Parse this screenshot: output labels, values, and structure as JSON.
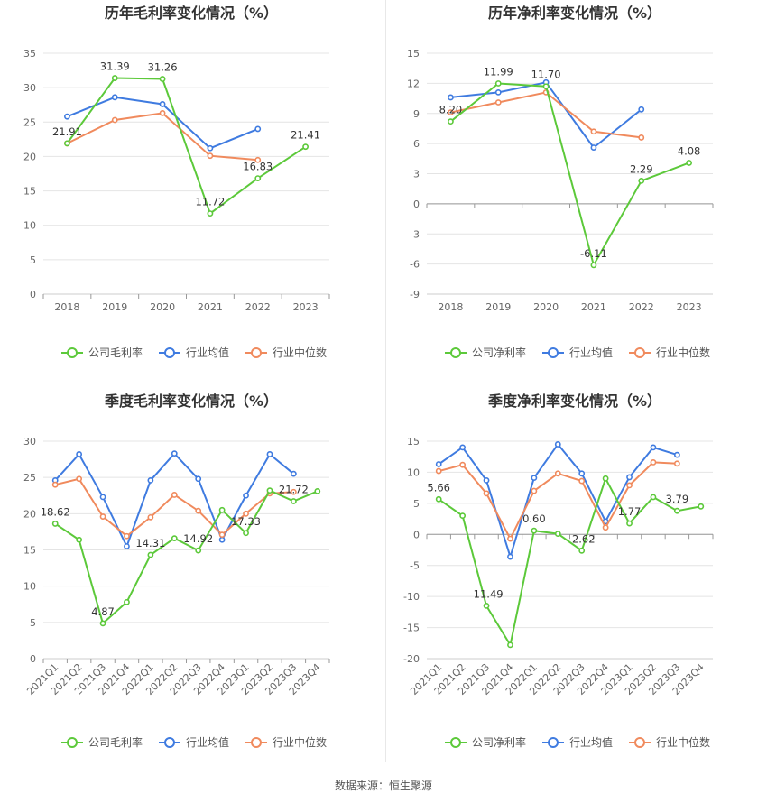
{
  "colors": {
    "company": "#5cc93a",
    "avg": "#3f7be0",
    "median": "#f08a5d",
    "grid": "#e4e4e4",
    "axis": "#666666",
    "title": "#333333"
  },
  "source_label": "数据来源：恒生聚源",
  "chart_data": [
    {
      "type": "line",
      "title": "历年毛利率变化情况（%）",
      "categories": [
        "2018",
        "2019",
        "2020",
        "2021",
        "2022",
        "2023"
      ],
      "ylim": [
        0,
        35
      ],
      "yticks": [
        0,
        5,
        10,
        15,
        20,
        25,
        30,
        35
      ],
      "rotate_x": false,
      "series": [
        {
          "name": "公司毛利率",
          "key": "company",
          "values": [
            21.91,
            31.39,
            31.26,
            11.72,
            16.83,
            21.41
          ],
          "labels": [
            "21.91",
            "31.39",
            "31.26",
            "11.72",
            "16.83",
            "21.41"
          ]
        },
        {
          "name": "行业均值",
          "key": "avg",
          "values": [
            25.8,
            28.6,
            27.6,
            21.2,
            24.0,
            null
          ]
        },
        {
          "name": "行业中位数",
          "key": "median",
          "values": [
            21.9,
            25.3,
            26.3,
            20.1,
            19.5,
            null
          ]
        }
      ]
    },
    {
      "type": "line",
      "title": "历年净利率变化情况（%）",
      "categories": [
        "2018",
        "2019",
        "2020",
        "2021",
        "2022",
        "2023"
      ],
      "ylim": [
        -9,
        15
      ],
      "yticks": [
        -9,
        -6,
        -3,
        0,
        3,
        6,
        9,
        12,
        15
      ],
      "rotate_x": false,
      "series": [
        {
          "name": "公司净利率",
          "key": "company",
          "values": [
            8.2,
            11.99,
            11.7,
            -6.11,
            2.29,
            4.08
          ],
          "labels": [
            "8.20",
            "11.99",
            "11.70",
            "-6.11",
            "2.29",
            "4.08"
          ]
        },
        {
          "name": "行业均值",
          "key": "avg",
          "values": [
            10.6,
            11.1,
            12.1,
            5.6,
            9.4,
            null
          ]
        },
        {
          "name": "行业中位数",
          "key": "median",
          "values": [
            9.1,
            10.1,
            11.1,
            7.2,
            6.6,
            null
          ]
        }
      ]
    },
    {
      "type": "line",
      "title": "季度毛利率变化情况（%）",
      "categories": [
        "2021Q1",
        "2021Q2",
        "2021Q3",
        "2021Q4",
        "2022Q1",
        "2022Q2",
        "2022Q3",
        "2022Q4",
        "2023Q1",
        "2023Q2",
        "2023Q3",
        "2023Q4"
      ],
      "ylim": [
        0,
        30
      ],
      "yticks": [
        0,
        5,
        10,
        15,
        20,
        25,
        30
      ],
      "rotate_x": true,
      "series": [
        {
          "name": "公司毛利率",
          "key": "company",
          "values": [
            18.62,
            16.4,
            4.87,
            7.8,
            14.31,
            16.6,
            14.92,
            20.5,
            17.33,
            23.2,
            21.72,
            23.1
          ],
          "labels": [
            "18.62",
            "",
            "4.87",
            "",
            "14.31",
            "",
            "14.92",
            "",
            "17.33",
            "",
            "21.72",
            ""
          ]
        },
        {
          "name": "行业均值",
          "key": "avg",
          "values": [
            24.6,
            28.2,
            22.3,
            15.5,
            24.6,
            28.3,
            24.8,
            16.4,
            22.5,
            28.2,
            25.5,
            null
          ]
        },
        {
          "name": "行业中位数",
          "key": "median",
          "values": [
            24.0,
            24.8,
            19.6,
            16.9,
            19.5,
            22.6,
            20.4,
            17.1,
            20.0,
            22.8,
            23.0,
            null
          ]
        }
      ]
    },
    {
      "type": "line",
      "title": "季度净利率变化情况（%）",
      "categories": [
        "2021Q1",
        "2021Q2",
        "2021Q3",
        "2021Q4",
        "2022Q1",
        "2022Q2",
        "2022Q3",
        "2022Q4",
        "2023Q1",
        "2023Q2",
        "2023Q3",
        "2023Q4"
      ],
      "ylim": [
        -20,
        15
      ],
      "yticks": [
        -20,
        -15,
        -10,
        -5,
        0,
        5,
        10,
        15
      ],
      "rotate_x": true,
      "series": [
        {
          "name": "公司净利率",
          "key": "company",
          "values": [
            5.66,
            3.0,
            -11.49,
            -17.8,
            0.6,
            0.1,
            -2.62,
            9.0,
            1.77,
            6.0,
            3.79,
            4.5
          ],
          "labels": [
            "5.66",
            "",
            "-11.49",
            "",
            "0.60",
            "",
            "-2.62",
            "",
            "1.77",
            "",
            "3.79",
            ""
          ]
        },
        {
          "name": "行业均值",
          "key": "avg",
          "values": [
            11.3,
            14.0,
            8.7,
            -3.6,
            9.1,
            14.5,
            9.8,
            2.1,
            9.2,
            14.0,
            12.8,
            null
          ]
        },
        {
          "name": "行业中位数",
          "key": "median",
          "values": [
            10.2,
            11.2,
            6.6,
            -0.7,
            7.0,
            9.8,
            8.6,
            1.1,
            7.9,
            11.6,
            11.4,
            null
          ]
        }
      ]
    }
  ]
}
